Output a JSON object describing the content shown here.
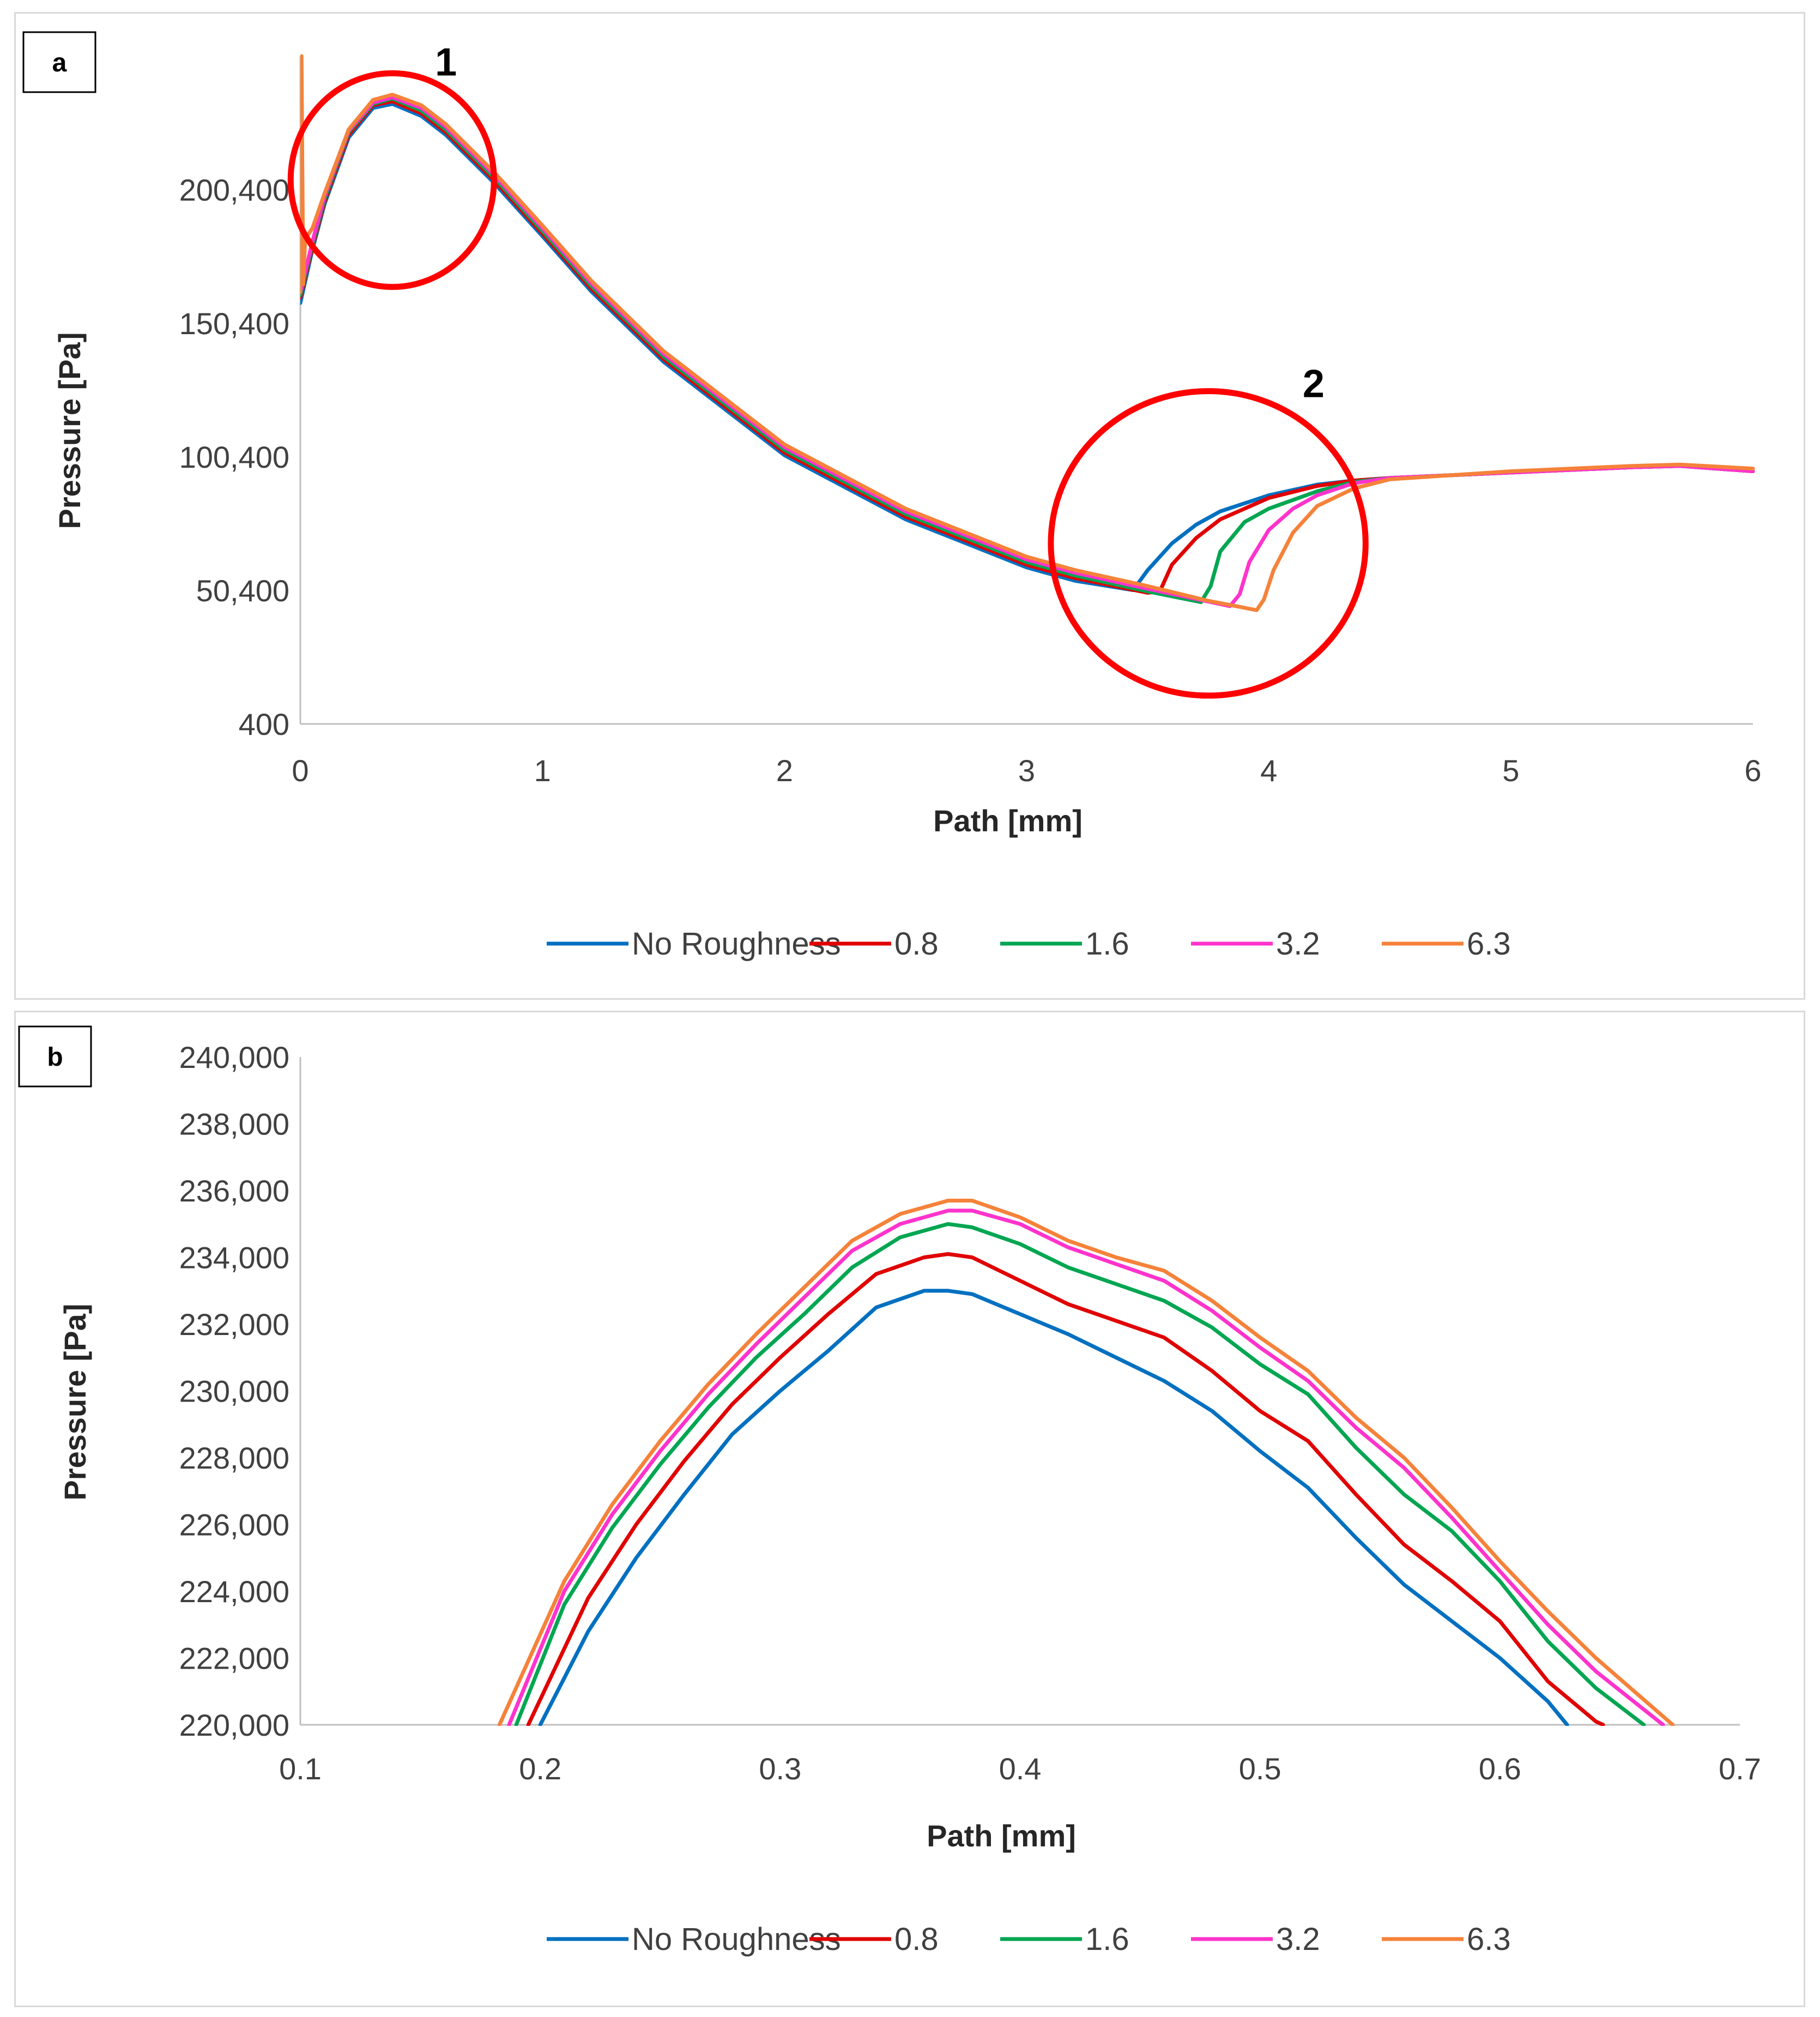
{
  "colors": {
    "No Roughness": "#0070c0",
    "0.8": "#e00000",
    "1.6": "#00a651",
    "3.2": "#ff33cc",
    "6.3": "#f5823a",
    "axis": "#bfbfbf",
    "annotation": "#ff0000"
  },
  "legend": [
    "No Roughness",
    "0.8",
    "1.6",
    "3.2",
    "6.3"
  ],
  "chart_data": [
    {
      "panel": "a",
      "type": "line",
      "xlabel": "Path [mm]",
      "ylabel": "Pressure [Pa]",
      "xlim": [
        0,
        6
      ],
      "ylim": [
        400,
        250400
      ],
      "xticks": [
        0,
        1,
        2,
        3,
        4,
        5,
        6
      ],
      "yticks": [
        400,
        50400,
        100400,
        150400,
        200400
      ],
      "ytick_labels": [
        "400",
        "50,400",
        "100,400",
        "150,400",
        "200,400"
      ],
      "annotations": [
        {
          "label": "1",
          "cx": 0.38,
          "cy": 204000,
          "rx": 0.42,
          "ry": 40000
        },
        {
          "label": "2",
          "cx": 3.75,
          "cy": 68000,
          "rx": 0.65,
          "ry": 57000
        }
      ],
      "series": [
        {
          "name": "No Roughness",
          "x": [
            0,
            0.05,
            0.1,
            0.2,
            0.3,
            0.38,
            0.5,
            0.6,
            0.7,
            0.8,
            1.0,
            1.2,
            1.5,
            2.0,
            2.5,
            3.0,
            3.2,
            3.44,
            3.5,
            3.6,
            3.7,
            3.8,
            4.0,
            4.2,
            4.35,
            4.5,
            5.0,
            5.5,
            5.7,
            6.0
          ],
          "y": [
            158000,
            178000,
            195000,
            220000,
            231000,
            232500,
            228000,
            221000,
            212000,
            203000,
            183000,
            162500,
            136000,
            101000,
            77000,
            59000,
            54000,
            50500,
            58000,
            68000,
            75000,
            80000,
            86000,
            90000,
            91500,
            92500,
            94500,
            96500,
            97000,
            95000
          ]
        },
        {
          "name": "0.8",
          "x": [
            0,
            0.05,
            0.1,
            0.2,
            0.3,
            0.38,
            0.5,
            0.6,
            0.7,
            0.8,
            1.0,
            1.2,
            1.5,
            2.0,
            2.5,
            3.0,
            3.2,
            3.5,
            3.55,
            3.6,
            3.7,
            3.8,
            4.0,
            4.2,
            4.35,
            4.5,
            5.0,
            5.5,
            5.7,
            6.0
          ],
          "y": [
            160000,
            179000,
            196000,
            221000,
            232000,
            233500,
            229000,
            222000,
            213000,
            204000,
            184000,
            163500,
            137000,
            102000,
            78000,
            60000,
            55000,
            49500,
            50000,
            60000,
            70000,
            77000,
            85000,
            89500,
            91500,
            92500,
            94500,
            96500,
            97000,
            95000
          ]
        },
        {
          "name": "1.6",
          "x": [
            0,
            0.05,
            0.1,
            0.2,
            0.3,
            0.38,
            0.5,
            0.6,
            0.7,
            0.8,
            1.0,
            1.2,
            1.5,
            2.0,
            2.5,
            3.0,
            3.2,
            3.5,
            3.72,
            3.76,
            3.8,
            3.9,
            4.0,
            4.2,
            4.35,
            4.5,
            5.0,
            5.5,
            5.7,
            6.0
          ],
          "y": [
            161000,
            180000,
            197000,
            222000,
            232500,
            234500,
            230000,
            223000,
            214000,
            205000,
            185000,
            164500,
            138000,
            103000,
            79000,
            61000,
            56000,
            50000,
            46000,
            52000,
            65000,
            76000,
            81000,
            87500,
            91000,
            92500,
            94500,
            96500,
            97000,
            95000
          ]
        },
        {
          "name": "3.2",
          "x": [
            0,
            0.05,
            0.1,
            0.2,
            0.3,
            0.38,
            0.5,
            0.6,
            0.7,
            0.8,
            1.0,
            1.2,
            1.5,
            2.0,
            2.5,
            3.0,
            3.2,
            3.5,
            3.84,
            3.88,
            3.92,
            4.0,
            4.1,
            4.2,
            4.35,
            4.5,
            5.0,
            5.5,
            5.7,
            6.0
          ],
          "y": [
            162000,
            181000,
            198000,
            222500,
            233000,
            235000,
            231000,
            224000,
            215000,
            206000,
            186000,
            165500,
            139000,
            104000,
            80000,
            62000,
            57000,
            51000,
            44500,
            49000,
            61000,
            73000,
            81000,
            86000,
            90500,
            92500,
            94500,
            96500,
            97000,
            95000
          ]
        },
        {
          "name": "6.3",
          "x": [
            0,
            0.005,
            0.012,
            0.02,
            0.05,
            0.1,
            0.2,
            0.3,
            0.38,
            0.5,
            0.6,
            0.7,
            0.8,
            1.0,
            1.2,
            1.5,
            2.0,
            2.5,
            3.0,
            3.2,
            3.5,
            3.75,
            3.95,
            3.98,
            4.02,
            4.1,
            4.2,
            4.35,
            4.5,
            5.0,
            5.5,
            5.7,
            6.0
          ],
          "y": [
            162000,
            250400,
            165000,
            182000,
            186000,
            199000,
            223000,
            234000,
            236000,
            232000,
            225000,
            216000,
            207000,
            187000,
            166500,
            140000,
            105000,
            81000,
            63000,
            58000,
            52000,
            46500,
            43000,
            47000,
            58000,
            72000,
            82000,
            88500,
            92000,
            95000,
            97000,
            97500,
            96000
          ]
        }
      ]
    },
    {
      "panel": "b",
      "type": "line",
      "xlabel": "Path [mm]",
      "ylabel": "Pressure [Pa]",
      "xlim": [
        0.1,
        0.7
      ],
      "ylim": [
        220000,
        240000
      ],
      "xticks": [
        0.1,
        0.2,
        0.3,
        0.4,
        0.5,
        0.6,
        0.7
      ],
      "xtick_labels": [
        "0.1",
        "0.2",
        "0.3",
        "0.4",
        "0.5",
        "0.6",
        "0.7"
      ],
      "yticks": [
        220000,
        222000,
        224000,
        226000,
        228000,
        230000,
        232000,
        234000,
        236000,
        238000,
        240000
      ],
      "ytick_labels": [
        "220,000",
        "222,000",
        "224,000",
        "226,000",
        "228,000",
        "230,000",
        "232,000",
        "234,000",
        "236,000",
        "238,000",
        "240,000"
      ],
      "series": [
        {
          "name": "No Roughness",
          "x": [
            0.2,
            0.22,
            0.24,
            0.26,
            0.28,
            0.3,
            0.32,
            0.34,
            0.36,
            0.37,
            0.38,
            0.4,
            0.42,
            0.44,
            0.46,
            0.48,
            0.5,
            0.52,
            0.54,
            0.56,
            0.58,
            0.6,
            0.62,
            0.628
          ],
          "y": [
            220000,
            222800,
            225000,
            226900,
            228700,
            230000,
            231200,
            232500,
            233000,
            233000,
            232900,
            232300,
            231700,
            231000,
            230300,
            229400,
            228200,
            227100,
            225600,
            224200,
            223100,
            222000,
            220700,
            220000
          ]
        },
        {
          "name": "0.8",
          "x": [
            0.195,
            0.22,
            0.24,
            0.26,
            0.28,
            0.3,
            0.32,
            0.34,
            0.36,
            0.37,
            0.38,
            0.4,
            0.42,
            0.44,
            0.46,
            0.48,
            0.5,
            0.52,
            0.54,
            0.56,
            0.58,
            0.6,
            0.62,
            0.64,
            0.643
          ],
          "y": [
            220000,
            223800,
            226000,
            227900,
            229600,
            231000,
            232300,
            233500,
            234000,
            234100,
            234000,
            233300,
            232600,
            232100,
            231600,
            230600,
            229400,
            228500,
            226900,
            225400,
            224300,
            223100,
            221300,
            220100,
            220000
          ]
        },
        {
          "name": "1.6",
          "x": [
            0.19,
            0.21,
            0.23,
            0.25,
            0.27,
            0.29,
            0.31,
            0.33,
            0.35,
            0.37,
            0.38,
            0.4,
            0.42,
            0.44,
            0.46,
            0.48,
            0.5,
            0.52,
            0.54,
            0.56,
            0.58,
            0.6,
            0.62,
            0.64,
            0.66
          ],
          "y": [
            220000,
            223600,
            225900,
            227800,
            229500,
            231000,
            232300,
            233700,
            234600,
            235000,
            234900,
            234400,
            233700,
            233200,
            232700,
            231900,
            230800,
            229900,
            228300,
            226900,
            225800,
            224300,
            222500,
            221100,
            220000
          ]
        },
        {
          "name": "3.2",
          "x": [
            0.187,
            0.21,
            0.23,
            0.25,
            0.27,
            0.29,
            0.31,
            0.33,
            0.35,
            0.37,
            0.38,
            0.4,
            0.42,
            0.44,
            0.46,
            0.48,
            0.5,
            0.52,
            0.54,
            0.56,
            0.58,
            0.6,
            0.62,
            0.64,
            0.668
          ],
          "y": [
            220000,
            224000,
            226300,
            228200,
            229900,
            231400,
            232800,
            234200,
            235000,
            235400,
            235400,
            235000,
            234300,
            233800,
            233300,
            232400,
            231300,
            230300,
            228900,
            227700,
            226200,
            224600,
            223000,
            221600,
            220000
          ]
        },
        {
          "name": "6.3",
          "x": [
            0.183,
            0.21,
            0.23,
            0.25,
            0.27,
            0.29,
            0.31,
            0.33,
            0.35,
            0.37,
            0.38,
            0.4,
            0.42,
            0.44,
            0.46,
            0.48,
            0.5,
            0.52,
            0.54,
            0.56,
            0.58,
            0.6,
            0.62,
            0.64,
            0.672
          ],
          "y": [
            220000,
            224300,
            226600,
            228500,
            230200,
            231700,
            233100,
            234500,
            235300,
            235700,
            235700,
            235200,
            234500,
            234000,
            233600,
            232700,
            231600,
            230600,
            229200,
            228000,
            226500,
            224900,
            223400,
            222000,
            220000
          ]
        }
      ]
    }
  ]
}
